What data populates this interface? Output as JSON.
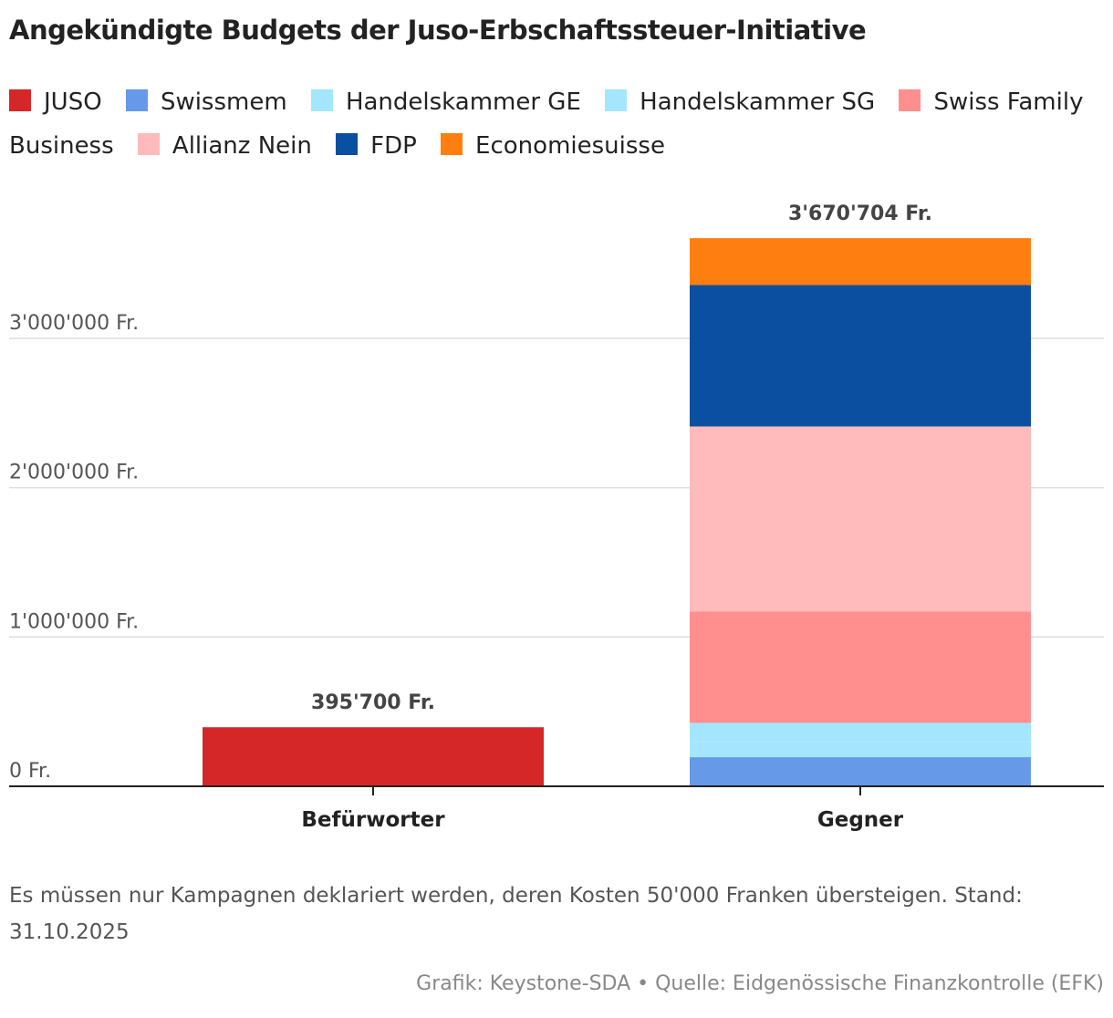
{
  "chart_data": {
    "type": "bar",
    "stacked": true,
    "title": "Angekündigte Budgets der Juso-Erbschaftssteuer-Initiative",
    "categories": [
      "Befürworter",
      "Gegner"
    ],
    "series": [
      {
        "name": "JUSO",
        "color": "#d62728",
        "values": [
          395700,
          0
        ]
      },
      {
        "name": "Swissmem",
        "color": "#6699e8",
        "values": [
          0,
          195000
        ]
      },
      {
        "name": "Handelskammer GE",
        "color": "#a4e6fd",
        "values": [
          0,
          100000
        ]
      },
      {
        "name": "Handelskammer SG",
        "color": "#a4e6fd",
        "values": [
          0,
          130000
        ]
      },
      {
        "name": "Swiss Family Business",
        "color": "#ff8f8f",
        "values": [
          0,
          745000
        ]
      },
      {
        "name": "Allianz Nein",
        "color": "#ffbabb",
        "values": [
          0,
          1240000
        ]
      },
      {
        "name": "FDP",
        "color": "#0a4fa0",
        "values": [
          0,
          947000
        ]
      },
      {
        "name": "Economiesuisse",
        "color": "#fe7f10",
        "values": [
          0,
          313704
        ]
      }
    ],
    "totals_labels": [
      "395'700 Fr.",
      "3'670'704 Fr."
    ],
    "yticks": [
      0,
      1000000,
      2000000,
      3000000
    ],
    "ytick_labels": [
      "0 Fr.",
      "1'000'000 Fr.",
      "2'000'000 Fr.",
      "3'000'000 Fr."
    ],
    "ylim": [
      0,
      3670704
    ],
    "grid": true,
    "legend_position": "top",
    "xlabel": "",
    "ylabel": ""
  },
  "note": "Es müssen nur Kampagnen deklariert werden, deren Kosten 50'000 Franken übersteigen. Stand: 31.10.2025",
  "credit": "Grafik: Keystone-SDA • Quelle: Eidgenössische Finanzkontrolle (EFK)"
}
